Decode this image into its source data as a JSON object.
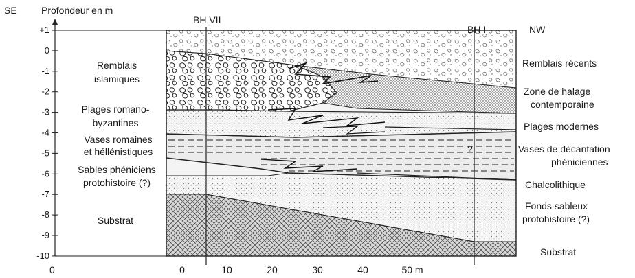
{
  "corner_left": "SE",
  "corner_right": "NW",
  "y_axis_title": "Profondeur en m",
  "y_ticks": [
    "+1",
    "0",
    "-1",
    "-2",
    "-3",
    "-4",
    "-5",
    "-6",
    "-7",
    "-8",
    "-9",
    "-10"
  ],
  "x_ticks": [
    "0",
    "0",
    "10",
    "20",
    "30",
    "40",
    "50 m"
  ],
  "boreholes": [
    "BH VII",
    "BH I"
  ],
  "left_labels": {
    "remblais_islamiques_1": "Remblais",
    "remblais_islamiques_2": "islamiques",
    "plages_romano_1": "Plages romano-",
    "plages_romano_2": "byzantines",
    "vases_romaines_1": "Vases romaines",
    "vases_romaines_2": "et héllénistiques",
    "sables_pheniciens_1": "Sables phéniciens",
    "sables_pheniciens_2": "protohistoire (?)",
    "substrat": "Substrat"
  },
  "right_labels": {
    "remblais_recents": "Remblais récents",
    "zone_halage_1": "Zone de halage",
    "zone_halage_2": "contemporaine",
    "plages_modernes": "Plages modernes",
    "vases_decantation_1": "Vases de décantation",
    "vases_decantation_2": "phéniciennes",
    "chalcolithique": "Chalcolithique",
    "fonds_sableux_1": "Fonds sableux",
    "fonds_sableux_2": "protohistoire (?)",
    "substrat": "Substrat"
  },
  "inline_mark": "?"
}
